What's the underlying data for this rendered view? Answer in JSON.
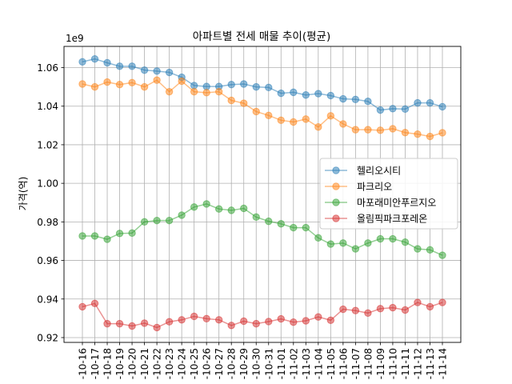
{
  "chart_data": {
    "type": "line",
    "title": "아파트별 전세 매물 추이(평균)",
    "xlabel": "",
    "ylabel": "가격(억)",
    "y_offset_label": "1e9",
    "ylim": [
      0.9175,
      1.071
    ],
    "yticks": [
      0.92,
      0.94,
      0.96,
      0.98,
      1.0,
      1.02,
      1.04,
      1.06
    ],
    "ytick_labels": [
      "0.92",
      "0.94",
      "0.96",
      "0.98",
      "1.00",
      "1.02",
      "1.04",
      "1.06"
    ],
    "grid": true,
    "legend_position": "center-right",
    "categories": [
      "-10-16",
      "-10-17",
      "-10-18",
      "-10-19",
      "-10-20",
      "-10-21",
      "-10-22",
      "-10-23",
      "-10-24",
      "-10-25",
      "-10-26",
      "-10-27",
      "-10-28",
      "-10-29",
      "-10-30",
      "-10-31",
      "-11-01",
      "-11-02",
      "-11-03",
      "-11-04",
      "-11-05",
      "-11-06",
      "-11-07",
      "-11-08",
      "-11-09",
      "-11-10",
      "-11-11",
      "-11-12",
      "-11-13",
      "-11-14"
    ],
    "series": [
      {
        "name": "헬리오시티",
        "color": "#1f77b4",
        "values": [
          1.063,
          1.0645,
          1.0625,
          1.0607,
          1.0607,
          1.0587,
          1.0582,
          1.0575,
          1.055,
          1.0507,
          1.0502,
          1.0502,
          1.0512,
          1.0515,
          1.05,
          1.0497,
          1.0467,
          1.0472,
          1.0458,
          1.0465,
          1.0455,
          1.0438,
          1.0435,
          1.0425,
          1.038,
          1.0387,
          1.0385,
          1.0417,
          1.0417,
          1.0397
        ]
      },
      {
        "name": "파크리오",
        "color": "#ff7f0e",
        "values": [
          1.0515,
          1.05,
          1.0525,
          1.0512,
          1.0522,
          1.05,
          1.0535,
          1.0475,
          1.053,
          1.0475,
          1.047,
          1.0475,
          1.043,
          1.0415,
          1.0372,
          1.0352,
          1.0327,
          1.0318,
          1.0333,
          1.0292,
          1.035,
          1.0308,
          1.0278,
          1.0278,
          1.0275,
          1.0283,
          1.0263,
          1.0255,
          1.0243,
          1.0262
        ]
      },
      {
        "name": "마포래미안푸르지오",
        "color": "#2ca02c",
        "values": [
          0.9727,
          0.9727,
          0.971,
          0.974,
          0.9742,
          0.98,
          0.9807,
          0.9807,
          0.9835,
          0.9877,
          0.9893,
          0.9867,
          0.986,
          0.987,
          0.9825,
          0.9803,
          0.979,
          0.977,
          0.977,
          0.9717,
          0.9685,
          0.969,
          0.966,
          0.969,
          0.9712,
          0.9712,
          0.9695,
          0.966,
          0.9655,
          0.9627
        ]
      },
      {
        "name": "올림픽파크포레온",
        "color": "#d62728",
        "values": [
          0.936,
          0.9377,
          0.9272,
          0.9272,
          0.926,
          0.9275,
          0.9252,
          0.9282,
          0.9292,
          0.931,
          0.9298,
          0.9292,
          0.9263,
          0.9285,
          0.9272,
          0.9283,
          0.9297,
          0.928,
          0.9287,
          0.9307,
          0.929,
          0.9347,
          0.934,
          0.9327,
          0.935,
          0.9355,
          0.9343,
          0.9382,
          0.936,
          0.9382
        ]
      }
    ]
  }
}
